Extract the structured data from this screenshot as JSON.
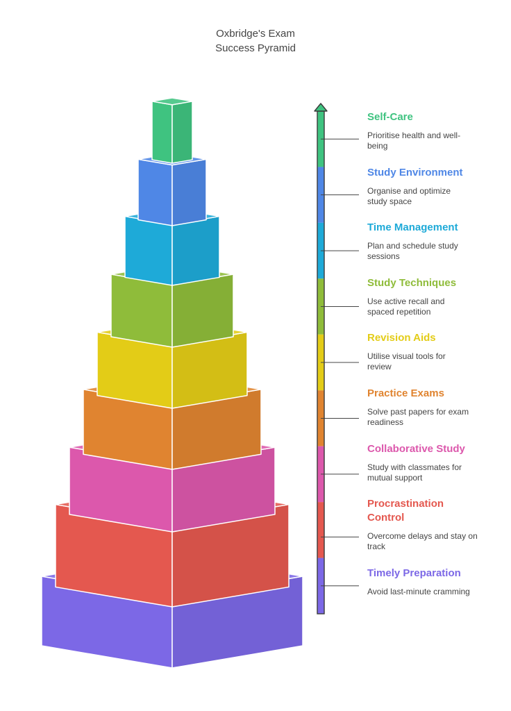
{
  "title": {
    "line1": "Oxbridge's Exam",
    "line2": "Success Pyramid"
  },
  "levels": [
    {
      "name": "Self-Care",
      "description": "Prioritise health and well-being",
      "color": "#3fc380"
    },
    {
      "name": "Study Environment",
      "description": "Organise and optimize study space",
      "color": "#4f87e6"
    },
    {
      "name": "Time Management",
      "description": "Plan and schedule study sessions",
      "color": "#1eaad8"
    },
    {
      "name": "Study Techniques",
      "description": "Use active recall and spaced repetition",
      "color": "#8fbc3a"
    },
    {
      "name": "Revision Aids",
      "description": "Utilise visual tools for review",
      "color": "#e3cc17"
    },
    {
      "name": "Practice Exams",
      "description": "Solve past papers for exam readiness",
      "color": "#e08430"
    },
    {
      "name": "Collaborative Study",
      "description": "Study with classmates for mutual support",
      "color": "#dc58ac"
    },
    {
      "name": "Procrastination Control",
      "description": "Overcome delays and stay on track",
      "color": "#e4584f"
    },
    {
      "name": "Timely Preparation",
      "description": "Avoid last-minute cramming",
      "color": "#7c68e6"
    }
  ]
}
